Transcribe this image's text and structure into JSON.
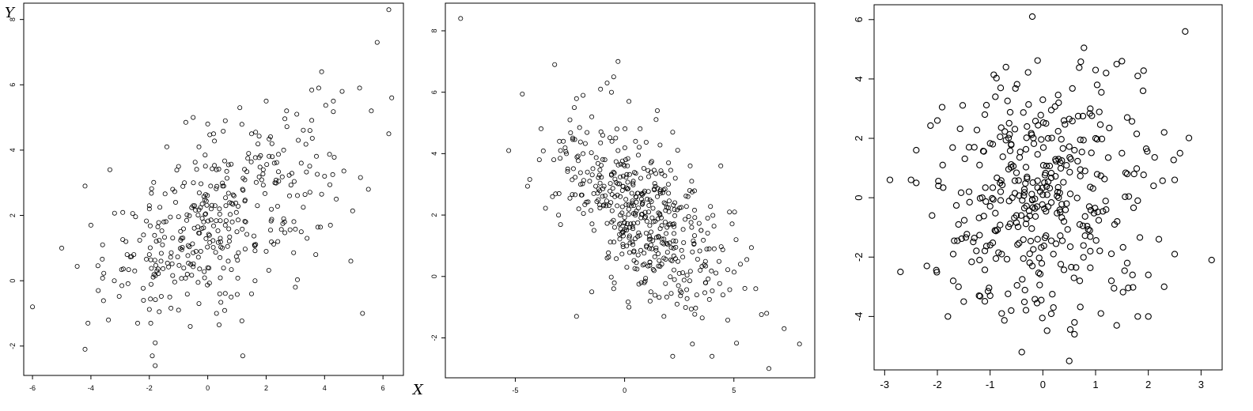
{
  "colors": {
    "background": "#ffffff",
    "ink": "#000000"
  },
  "chart_data": [
    {
      "type": "scatter",
      "panel": "left",
      "xlabel": "X",
      "ylabel": "Y",
      "xlim": [
        -6.3,
        6.7
      ],
      "ylim": [
        -2.9,
        8.5
      ],
      "xticks": [
        -6,
        -4,
        -2,
        0,
        2,
        4,
        6
      ],
      "yticks": [
        -2,
        0,
        2,
        4,
        6,
        8
      ],
      "grid": false,
      "legend": "none",
      "n_points": 400,
      "points": [
        [
          -6.0,
          -0.8
        ],
        [
          -5.0,
          1.0
        ],
        [
          -4.2,
          2.9
        ],
        [
          -4.0,
          1.7
        ],
        [
          -4.2,
          -2.1
        ],
        [
          -4.1,
          -1.3
        ],
        [
          -3.6,
          1.1
        ],
        [
          -3.4,
          -1.2
        ],
        [
          -3.2,
          0.0
        ],
        [
          -2.8,
          1.2
        ],
        [
          -2.4,
          -1.3
        ],
        [
          -2.2,
          1.4
        ],
        [
          -2.0,
          2.2
        ],
        [
          -2.0,
          0.8
        ],
        [
          -1.9,
          -2.3
        ],
        [
          -1.8,
          -2.6
        ],
        [
          -1.8,
          -1.9
        ],
        [
          -1.4,
          4.1
        ],
        [
          -1.2,
          2.8
        ],
        [
          -1.0,
          3.5
        ],
        [
          -0.8,
          3.0
        ],
        [
          -0.5,
          5.0
        ],
        [
          -0.3,
          4.1
        ],
        [
          0.0,
          4.8
        ],
        [
          0.2,
          4.5
        ],
        [
          0.6,
          4.9
        ],
        [
          1.1,
          5.3
        ],
        [
          1.5,
          4.5
        ],
        [
          2.0,
          5.5
        ],
        [
          2.2,
          4.2
        ],
        [
          2.7,
          5.2
        ],
        [
          3.1,
          4.3
        ],
        [
          3.5,
          4.6
        ],
        [
          3.8,
          5.9
        ],
        [
          3.9,
          6.4
        ],
        [
          4.3,
          5.5
        ],
        [
          4.6,
          5.8
        ],
        [
          5.2,
          5.9
        ],
        [
          5.8,
          7.3
        ],
        [
          6.2,
          8.3
        ],
        [
          6.3,
          5.6
        ],
        [
          6.2,
          4.5
        ],
        [
          5.6,
          5.2
        ],
        [
          5.5,
          2.8
        ],
        [
          5.3,
          -1.0
        ],
        [
          4.9,
          0.6
        ],
        [
          4.2,
          1.7
        ],
        [
          3.7,
          0.8
        ],
        [
          3.4,
          1.3
        ],
        [
          2.6,
          1.9
        ],
        [
          2.3,
          3.0
        ],
        [
          1.6,
          1.1
        ],
        [
          1.5,
          -0.4
        ],
        [
          1.2,
          -2.3
        ],
        [
          0.8,
          -0.5
        ],
        [
          0.3,
          -1.0
        ],
        [
          0.0,
          0.4
        ],
        [
          -0.3,
          -0.7
        ],
        [
          -0.6,
          -1.4
        ],
        [
          -1.0,
          -0.9
        ],
        [
          -1.3,
          -0.5
        ],
        [
          -1.6,
          0.6
        ],
        [
          -0.2,
          1.6
        ],
        [
          0.4,
          2.2
        ],
        [
          0.9,
          2.6
        ],
        [
          1.3,
          1.8
        ],
        [
          -0.9,
          1.3
        ],
        [
          0.7,
          0.6
        ],
        [
          0.1,
          2.9
        ],
        [
          -0.5,
          2.3
        ],
        [
          1.9,
          3.4
        ],
        [
          2.8,
          2.6
        ],
        [
          3.2,
          3.6
        ],
        [
          4.0,
          3.2
        ],
        [
          4.4,
          2.5
        ],
        [
          3.0,
          -0.2
        ],
        [
          2.0,
          0.9
        ],
        [
          1.0,
          1.5
        ],
        [
          -1.5,
          1.8
        ],
        [
          -2.5,
          0.3
        ],
        [
          -2.2,
          -0.6
        ],
        [
          -0.7,
          0.2
        ],
        [
          0.5,
          1.0
        ],
        [
          1.7,
          2.3
        ],
        [
          2.4,
          1.2
        ],
        [
          -1.1,
          2.4
        ],
        [
          0.3,
          3.4
        ],
        [
          1.4,
          3.9
        ],
        [
          2.6,
          4.0
        ],
        [
          -0.4,
          0.9
        ]
      ]
    },
    {
      "type": "scatter",
      "panel": "middle",
      "xlim": [
        -8.2,
        8.7
      ],
      "ylim": [
        -3.3,
        8.9
      ],
      "xticks": [
        -5,
        0,
        5
      ],
      "yticks": [
        -2,
        0,
        2,
        4,
        6,
        8
      ],
      "grid": false,
      "legend": "none",
      "n_points": 500,
      "points": [
        [
          -7.5,
          8.4
        ],
        [
          -5.3,
          4.1
        ],
        [
          -3.2,
          6.9
        ],
        [
          -3.9,
          3.8
        ],
        [
          -2.5,
          5.1
        ],
        [
          -2.3,
          5.5
        ],
        [
          -1.9,
          5.9
        ],
        [
          -1.5,
          5.2
        ],
        [
          -1.1,
          6.1
        ],
        [
          -0.8,
          6.3
        ],
        [
          -0.6,
          6.0
        ],
        [
          -0.3,
          7.0
        ],
        [
          -0.5,
          6.5
        ],
        [
          0.2,
          5.7
        ],
        [
          1.5,
          5.4
        ],
        [
          2.2,
          4.7
        ],
        [
          3.0,
          3.6
        ],
        [
          4.4,
          3.6
        ],
        [
          4.8,
          2.1
        ],
        [
          5.1,
          1.2
        ],
        [
          5.3,
          0.4
        ],
        [
          6.0,
          -0.4
        ],
        [
          6.5,
          -1.2
        ],
        [
          6.6,
          -3.0
        ],
        [
          8.0,
          -2.2
        ],
        [
          7.3,
          -1.7
        ],
        [
          4.0,
          -2.6
        ],
        [
          3.1,
          -2.2
        ],
        [
          2.2,
          -2.6
        ],
        [
          1.8,
          -1.3
        ],
        [
          1.2,
          -0.5
        ],
        [
          0.2,
          -1.0
        ],
        [
          -0.5,
          -0.4
        ],
        [
          -1.5,
          -0.5
        ],
        [
          -2.2,
          -1.3
        ],
        [
          -3.0,
          2.7
        ],
        [
          -2.1,
          2.2
        ],
        [
          -1.6,
          3.1
        ],
        [
          -1.2,
          2.5
        ],
        [
          -0.6,
          3.3
        ],
        [
          0.0,
          3.6
        ],
        [
          0.4,
          3.1
        ],
        [
          0.8,
          2.7
        ],
        [
          1.1,
          2.1
        ],
        [
          1.4,
          1.8
        ],
        [
          1.9,
          1.4
        ],
        [
          2.3,
          2.4
        ],
        [
          2.7,
          1.1
        ],
        [
          3.1,
          0.8
        ],
        [
          3.5,
          1.5
        ],
        [
          -0.2,
          2.0
        ],
        [
          0.6,
          1.3
        ],
        [
          1.7,
          0.4
        ],
        [
          2.5,
          0.1
        ],
        [
          3.3,
          -0.6
        ],
        [
          -1.9,
          4.0
        ],
        [
          -1.0,
          4.6
        ],
        [
          -0.3,
          4.1
        ],
        [
          0.5,
          4.4
        ],
        [
          1.2,
          3.7
        ],
        [
          -2.6,
          3.5
        ],
        [
          -3.3,
          2.6
        ],
        [
          -2.8,
          4.4
        ],
        [
          -1.4,
          1.5
        ],
        [
          -0.8,
          0.6
        ],
        [
          0.1,
          0.3
        ],
        [
          0.9,
          -0.2
        ],
        [
          2.0,
          3.0
        ],
        [
          2.9,
          2.6
        ],
        [
          3.8,
          1.9
        ],
        [
          4.1,
          0.9
        ],
        [
          4.5,
          -0.6
        ],
        [
          -0.1,
          2.8
        ],
        [
          0.3,
          2.3
        ],
        [
          1.0,
          1.0
        ],
        [
          1.5,
          2.6
        ],
        [
          -0.9,
          3.8
        ],
        [
          -1.7,
          3.4
        ],
        [
          2.4,
          -0.9
        ],
        [
          3.7,
          -0.2
        ]
      ]
    },
    {
      "type": "scatter",
      "panel": "right",
      "xlim": [
        -3.2,
        3.4
      ],
      "ylim": [
        -5.8,
        6.5
      ],
      "xticks": [
        -3,
        -2,
        -1,
        0,
        1,
        2,
        3
      ],
      "yticks": [
        -4,
        -2,
        0,
        2,
        4,
        6
      ],
      "grid": false,
      "legend": "none",
      "n_points": 400,
      "points": [
        [
          -2.9,
          0.6
        ],
        [
          -2.7,
          -2.5
        ],
        [
          -2.5,
          0.6
        ],
        [
          -2.4,
          1.6
        ],
        [
          -2.4,
          0.5
        ],
        [
          -2.2,
          -2.3
        ],
        [
          -2.0,
          2.6
        ],
        [
          -1.9,
          1.1
        ],
        [
          -1.7,
          -2.8
        ],
        [
          -1.7,
          -1.9
        ],
        [
          -1.8,
          -4.0
        ],
        [
          -1.6,
          -3.0
        ],
        [
          -1.5,
          -3.5
        ],
        [
          -1.4,
          0.2
        ],
        [
          -1.4,
          1.7
        ],
        [
          -1.2,
          -2.1
        ],
        [
          -1.1,
          2.8
        ],
        [
          -1.0,
          -3.3
        ],
        [
          -0.9,
          3.4
        ],
        [
          -0.8,
          3.7
        ],
        [
          -0.7,
          4.4
        ],
        [
          -0.6,
          -3.8
        ],
        [
          -0.4,
          -5.2
        ],
        [
          -0.2,
          6.1
        ],
        [
          -0.1,
          -1.4
        ],
        [
          0.0,
          3.3
        ],
        [
          0.1,
          2.0
        ],
        [
          0.2,
          -3.7
        ],
        [
          0.2,
          -1.9
        ],
        [
          0.3,
          3.2
        ],
        [
          0.4,
          -0.8
        ],
        [
          0.5,
          -5.5
        ],
        [
          0.6,
          -4.6
        ],
        [
          0.6,
          -4.2
        ],
        [
          0.7,
          -2.8
        ],
        [
          0.9,
          3.0
        ],
        [
          1.0,
          4.3
        ],
        [
          1.1,
          -3.9
        ],
        [
          1.2,
          4.2
        ],
        [
          1.3,
          -2.8
        ],
        [
          1.4,
          4.5
        ],
        [
          1.5,
          4.6
        ],
        [
          1.6,
          -2.2
        ],
        [
          1.6,
          2.7
        ],
        [
          1.7,
          -2.6
        ],
        [
          1.8,
          4.1
        ],
        [
          1.9,
          3.6
        ],
        [
          2.0,
          -2.6
        ],
        [
          2.0,
          -4.0
        ],
        [
          2.2,
          -1.4
        ],
        [
          2.3,
          2.2
        ],
        [
          2.5,
          -1.9
        ],
        [
          2.6,
          1.5
        ],
        [
          2.5,
          0.6
        ],
        [
          2.7,
          5.6
        ],
        [
          3.2,
          -2.1
        ],
        [
          2.3,
          -3.0
        ],
        [
          1.8,
          -4.0
        ],
        [
          1.4,
          -4.3
        ],
        [
          0.8,
          0.9
        ],
        [
          0.3,
          1.3
        ],
        [
          -0.3,
          0.7
        ],
        [
          -0.8,
          0.2
        ],
        [
          -1.2,
          1.1
        ],
        [
          -0.5,
          -0.6
        ],
        [
          0.1,
          -0.3
        ],
        [
          0.7,
          -0.9
        ],
        [
          1.2,
          -0.4
        ],
        [
          1.6,
          0.8
        ],
        [
          -1.6,
          -0.9
        ],
        [
          -0.3,
          2.4
        ],
        [
          0.4,
          2.6
        ],
        [
          1.0,
          2.0
        ],
        [
          -1.0,
          -1.6
        ],
        [
          -0.2,
          -2.3
        ],
        [
          0.9,
          -1.8
        ],
        [
          1.5,
          1.5
        ],
        [
          -2.1,
          -0.6
        ],
        [
          2.1,
          0.4
        ],
        [
          -0.6,
          1.8
        ]
      ]
    }
  ]
}
